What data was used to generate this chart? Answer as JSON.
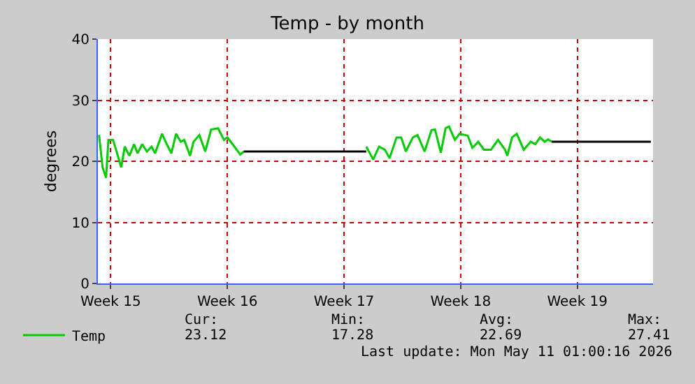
{
  "chart_data": {
    "type": "line",
    "title": "Temp - by month",
    "ylabel": "degrees",
    "xlim": [
      "2026-04-07T17:30",
      "2026-05-11T01:00"
    ],
    "xticks": [
      {
        "value": "2026-04-08T12:00",
        "label": "Week 15"
      },
      {
        "value": "2026-04-15T12:00",
        "label": "Week 16"
      },
      {
        "value": "2026-04-22T12:00",
        "label": "Week 17"
      },
      {
        "value": "2026-04-29T12:00",
        "label": "Week 18"
      },
      {
        "value": "2026-05-06T12:00",
        "label": "Week 19"
      }
    ],
    "ylim": [
      0,
      40
    ],
    "yticks": [
      0,
      10,
      20,
      30,
      40
    ],
    "grid": true,
    "legend": "bottom left",
    "marker": "none",
    "line_style": "solid",
    "series": [
      {
        "name": "Temp",
        "color": "#00cc00",
        "x": [
          "2026-04-07T19:10",
          "2026-04-08T00:15",
          "2026-04-08T05:15",
          "2026-04-08T08:40",
          "2026-04-08T15:20",
          "2026-04-08T20:25",
          "2026-04-09T03:05",
          "2026-04-09T08:10",
          "2026-04-09T14:55",
          "2026-04-09T21:35",
          "2026-04-10T02:40",
          "2026-04-10T09:20",
          "2026-04-10T16:05",
          "2026-04-10T22:50",
          "2026-04-11T03:50",
          "2026-04-11T13:55",
          "2026-04-11T20:40",
          "2026-04-12T03:20",
          "2026-04-12T10:05",
          "2026-04-12T16:50",
          "2026-04-12T21:50",
          "2026-04-13T06:15",
          "2026-04-13T11:15",
          "2026-04-13T19:40",
          "2026-04-14T04:05",
          "2026-04-14T12:30",
          "2026-04-14T22:35",
          "2026-04-15T07:00",
          "2026-04-15T12:00",
          "2026-04-15T22:05",
          "2026-04-16T06:30",
          "2026-04-16T11:30",
          null,
          "2026-04-23T19:55",
          "2026-04-24T06:00",
          "2026-04-24T14:25",
          "2026-04-24T22:50",
          "2026-04-25T05:30",
          "2026-04-25T15:35",
          "2026-04-25T22:20",
          "2026-04-26T05:00",
          "2026-04-26T15:05",
          "2026-04-26T21:50",
          "2026-04-27T07:55",
          "2026-04-27T18:00",
          "2026-04-27T23:00",
          "2026-04-28T07:25",
          "2026-04-28T14:10",
          "2026-04-28T19:10",
          "2026-04-29T03:35",
          "2026-04-29T10:20",
          "2026-04-29T22:05",
          "2026-04-30T04:50",
          "2026-04-30T13:10",
          "2026-04-30T21:35",
          "2026-05-01T07:40",
          "2026-05-01T17:45",
          "2026-05-02T03:50",
          "2026-05-02T07:10",
          "2026-05-02T13:55",
          "2026-05-02T20:40",
          "2026-05-03T06:45",
          "2026-05-03T16:50",
          "2026-05-03T23:30",
          "2026-05-04T06:15",
          "2026-05-04T13:00",
          "2026-05-04T18:00",
          "2026-05-04T23:00"
        ],
        "values": [
          24.3,
          19.0,
          17.3,
          23.5,
          23.5,
          21.6,
          19.0,
          22.4,
          20.9,
          22.8,
          21.3,
          22.8,
          21.6,
          22.4,
          21.3,
          24.5,
          22.8,
          21.3,
          24.5,
          23.2,
          23.5,
          20.9,
          23.2,
          24.3,
          21.6,
          25.2,
          25.4,
          23.5,
          23.9,
          22.4,
          21.1,
          21.6,
          null,
          22.4,
          20.3,
          22.4,
          21.9,
          20.5,
          23.9,
          23.9,
          21.6,
          23.9,
          24.3,
          21.6,
          25.1,
          25.2,
          21.4,
          25.4,
          25.7,
          23.5,
          24.5,
          24.2,
          22.2,
          23.2,
          21.9,
          21.9,
          23.5,
          21.9,
          20.9,
          23.9,
          24.5,
          21.9,
          23.2,
          22.8,
          23.9,
          23.2,
          23.6,
          23.2
        ]
      },
      {
        "color": "#000000",
        "x": [
          "2026-04-16T11:30",
          "2026-04-23T19:55",
          null,
          "2026-05-04T23:00",
          "2026-05-10T21:50"
        ],
        "values": [
          21.6,
          21.6,
          null,
          23.2,
          23.2
        ]
      }
    ],
    "annotations": [
      "Cur:",
      "Min:",
      "Avg:",
      "Max:",
      "23.12",
      "17.28",
      "22.69",
      "27.41",
      "Last update: Mon May 11 01:00:16 2026"
    ]
  }
}
